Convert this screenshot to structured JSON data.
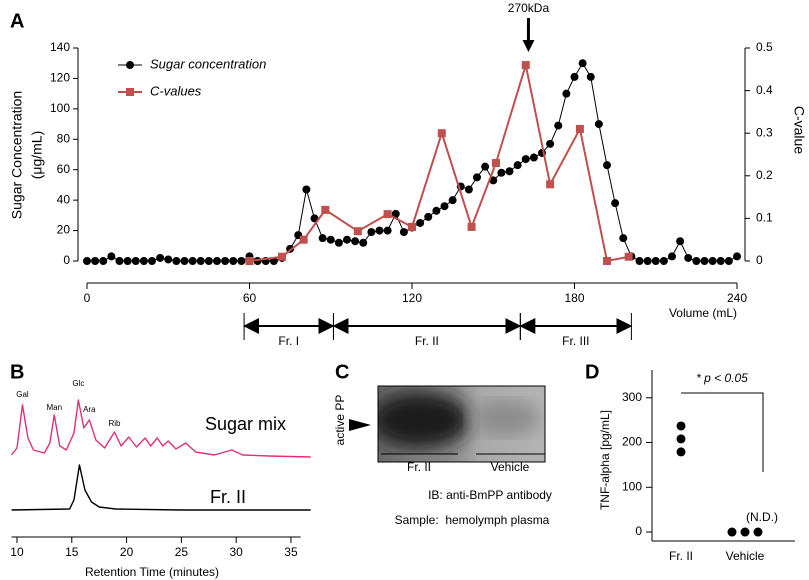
{
  "chart_data": [
    {
      "panel": "A",
      "type": "line",
      "x_label": "Volume (mL)",
      "y_label": [
        "Sugar Concentration",
        "(μg/mL)"
      ],
      "y2_label": "C-value",
      "xlim": [
        0,
        240
      ],
      "xticks": [
        0,
        60,
        120,
        180,
        240
      ],
      "ylim": [
        0,
        140
      ],
      "yticks": [
        0,
        20,
        40,
        60,
        80,
        100,
        120,
        140
      ],
      "y2lim": [
        0,
        0.5
      ],
      "y2ticks": [
        0,
        0.1,
        0.2,
        0.3,
        0.4,
        0.5
      ],
      "series": [
        {
          "name": "Sugar concentration",
          "color": "#000000",
          "marker": "circle",
          "x": [
            0,
            3,
            6,
            9,
            12,
            15,
            18,
            21,
            24,
            27,
            30,
            33,
            36,
            39,
            42,
            45,
            48,
            51,
            54,
            57,
            60,
            63,
            66,
            69,
            72,
            75,
            78,
            81,
            84,
            87,
            90,
            93,
            96,
            99,
            102,
            105,
            108,
            111,
            114,
            117,
            120,
            123,
            126,
            129,
            132,
            135,
            138,
            141,
            144,
            147,
            150,
            153,
            156,
            159,
            162,
            165,
            168,
            171,
            174,
            177,
            180,
            183,
            186,
            189,
            192,
            195,
            198,
            201,
            204,
            207,
            210,
            213,
            216,
            219,
            222,
            225,
            228,
            231,
            234,
            237,
            240
          ],
          "values": [
            0,
            0,
            0,
            3,
            0,
            0,
            0,
            0,
            0,
            2,
            1,
            0,
            0,
            0,
            0,
            0,
            0,
            0,
            0,
            0,
            3,
            0,
            0,
            0,
            2,
            8,
            17,
            47,
            28,
            15,
            14,
            12,
            14,
            13,
            12,
            19,
            20,
            20,
            31,
            19,
            22,
            25,
            29,
            33,
            36,
            40,
            49,
            47,
            55,
            62,
            53,
            58,
            59,
            63,
            67,
            68,
            71,
            77,
            89,
            110,
            121,
            130,
            121,
            90,
            63,
            38,
            15,
            3,
            0,
            0,
            0,
            0,
            3,
            13,
            2,
            0,
            0,
            0,
            0,
            0,
            3
          ]
        },
        {
          "name": "C-values",
          "color": "#c0504d",
          "marker": "square",
          "axis": "y2",
          "x": [
            60,
            72,
            80,
            88,
            100,
            111,
            120,
            131,
            142,
            151,
            162,
            171,
            182,
            192,
            200
          ],
          "values": [
            0,
            0.01,
            0.05,
            0.12,
            0.07,
            0.11,
            0.08,
            0.3,
            0.08,
            0.23,
            0.46,
            0.18,
            0.31,
            0.0,
            0.01
          ]
        }
      ],
      "annotations": [
        {
          "text": "270kDa",
          "x": 163
        }
      ],
      "fractions": [
        {
          "label": "Fr. I",
          "start": 58,
          "end": 91
        },
        {
          "label": "Fr. II",
          "start": 91,
          "end": 160
        },
        {
          "label": "Fr. III",
          "start": 160,
          "end": 201
        }
      ]
    },
    {
      "panel": "B",
      "type": "line",
      "x_label": "Retention Time (minutes)",
      "xlim": [
        9.5,
        36.8
      ],
      "xticks": [
        10,
        15,
        20,
        25,
        30,
        35
      ],
      "ylim": [
        0,
        60
      ],
      "series": [
        {
          "name": "Sugar mix",
          "color": "#e0307a",
          "x": [
            9.5,
            10,
            10.5,
            11,
            11.5,
            12.5,
            13,
            13.4,
            13.9,
            14.5,
            15.2,
            15.6,
            16.1,
            16.6,
            17.2,
            18,
            18.9,
            19.5,
            20.2,
            20.9,
            21.7,
            22.2,
            22.8,
            23.3,
            23.8,
            24.5,
            25.4,
            26.3,
            28,
            29.6,
            30.6,
            33,
            36.8
          ],
          "values": [
            3,
            10,
            53,
            20,
            8,
            5,
            15,
            43,
            12,
            8,
            25,
            58,
            30,
            38,
            18,
            10,
            26,
            12,
            21,
            11,
            20,
            12,
            20,
            12,
            17,
            9,
            15,
            6,
            3,
            8,
            3,
            2,
            1
          ]
        },
        {
          "name": "Fr. II",
          "color": "#000000",
          "x": [
            9.5,
            14.8,
            15.2,
            15.7,
            16.2,
            16.8,
            17.5,
            19,
            25,
            36.8
          ],
          "values": [
            0,
            1,
            10,
            45,
            20,
            8,
            3,
            1,
            0,
            0
          ]
        }
      ],
      "peaks": [
        {
          "label": "Gal",
          "x": 10.5
        },
        {
          "label": "Man",
          "x": 13.4
        },
        {
          "label": "Glc",
          "x": 15.6
        },
        {
          "label": "Ara",
          "x": 16.6
        },
        {
          "label": "Rib",
          "x": 18.9
        }
      ]
    },
    {
      "panel": "D",
      "type": "dot",
      "y_label": "TNF-alpha [pg/mL]",
      "ylim": [
        -20,
        362
      ],
      "yticks": [
        0,
        100,
        200,
        300
      ],
      "categories": [
        "Fr. II",
        "Vehicle"
      ],
      "values": [
        [
          237,
          208,
          179
        ],
        [
          0,
          0,
          0
        ]
      ],
      "color": "#000000",
      "annotations": [
        {
          "text": "* p < 0.05"
        },
        {
          "text": "(N.D.)"
        }
      ]
    }
  ],
  "blot": {
    "panel": "C",
    "label": "active PP",
    "lanes": [
      "Fr. II",
      "Vehicle"
    ],
    "notes": [
      "IB: anti-BmPP antibody",
      "Sample:  hemolymph plasma"
    ]
  }
}
